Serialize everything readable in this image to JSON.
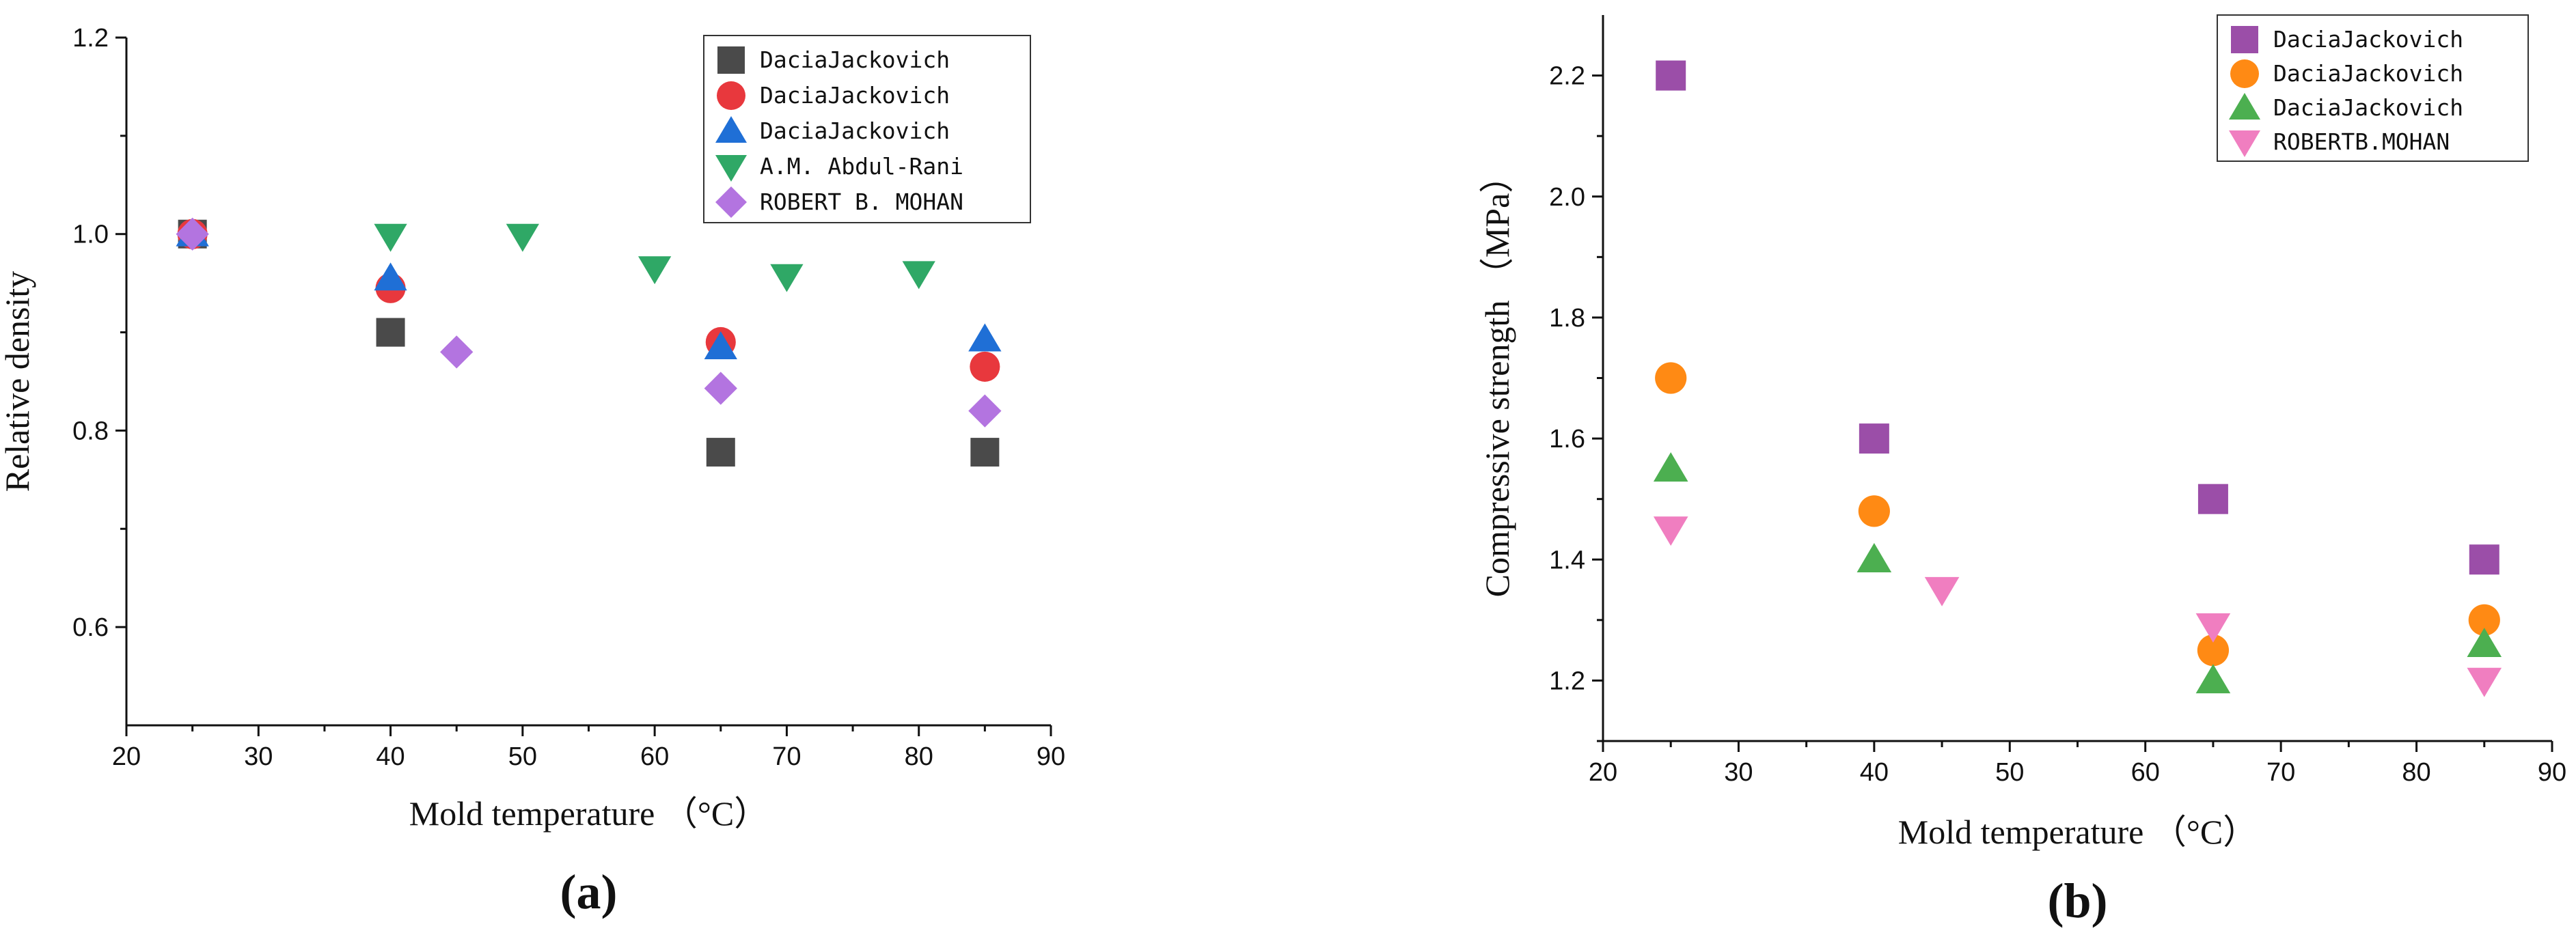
{
  "chart_data": [
    {
      "type": "scatter",
      "panel_label": "(a)",
      "xlabel": "Mold  temperature  （°C）",
      "ylabel": "Relative density",
      "xlim": [
        20,
        90
      ],
      "ylim": [
        0.5,
        1.2
      ],
      "xticks": [
        20,
        30,
        40,
        50,
        60,
        70,
        80,
        90
      ],
      "yticks": [
        0.6,
        0.8,
        1.0,
        1.2
      ],
      "ytick_labels": [
        "0.6",
        "0.8",
        "1.0",
        "1.2"
      ],
      "legend_position": "top-right",
      "series": [
        {
          "name": "DaciaJackovich",
          "marker": "square",
          "color": "#4a4a4a",
          "points": [
            [
              25,
              1.0
            ],
            [
              40,
              0.9
            ],
            [
              65,
              0.778
            ],
            [
              85,
              0.778
            ]
          ]
        },
        {
          "name": "DaciaJackovich",
          "marker": "circle",
          "color": "#e8383d",
          "points": [
            [
              25,
              1.0
            ],
            [
              40,
              0.945
            ],
            [
              65,
              0.89
            ],
            [
              85,
              0.865
            ]
          ]
        },
        {
          "name": "DaciaJackovich",
          "marker": "triangle-up",
          "color": "#1f6fd6",
          "points": [
            [
              25,
              1.0
            ],
            [
              40,
              0.955
            ],
            [
              65,
              0.885
            ],
            [
              85,
              0.893
            ]
          ]
        },
        {
          "name": "A.M. Abdul-Rani",
          "marker": "triangle-down",
          "color": "#2fa866",
          "points": [
            [
              40,
              0.998
            ],
            [
              50,
              0.998
            ],
            [
              60,
              0.965
            ],
            [
              70,
              0.957
            ],
            [
              80,
              0.96
            ]
          ]
        },
        {
          "name": "ROBERT B. MOHAN",
          "marker": "diamond",
          "color": "#b374e0",
          "points": [
            [
              25,
              1.0
            ],
            [
              45,
              0.88
            ],
            [
              65,
              0.843
            ],
            [
              85,
              0.82
            ]
          ]
        }
      ]
    },
    {
      "type": "scatter",
      "panel_label": "(b)",
      "xlabel": "Mold  temperature  （°C）",
      "ylabel": "Compressive  strength  （MPa）",
      "xlim": [
        20,
        90
      ],
      "ylim": [
        1.1,
        2.3
      ],
      "xticks": [
        20,
        30,
        40,
        50,
        60,
        70,
        80,
        90
      ],
      "yticks": [
        1.2,
        1.4,
        1.6,
        1.8,
        2.0,
        2.2
      ],
      "ytick_labels": [
        "1.2",
        "1.4",
        "1.6",
        "1.8",
        "2.0",
        "2.2"
      ],
      "legend_position": "top-right",
      "series": [
        {
          "name": "DaciaJackovich",
          "marker": "square",
          "color": "#9b4ea8",
          "points": [
            [
              25,
              2.2
            ],
            [
              40,
              1.6
            ],
            [
              65,
              1.5
            ],
            [
              85,
              1.4
            ]
          ]
        },
        {
          "name": "DaciaJackovich",
          "marker": "circle",
          "color": "#ff8a14",
          "points": [
            [
              25,
              1.7
            ],
            [
              40,
              1.48
            ],
            [
              65,
              1.25
            ],
            [
              85,
              1.3
            ]
          ]
        },
        {
          "name": "DaciaJackovich",
          "marker": "triangle-up",
          "color": "#4caf50",
          "points": [
            [
              25,
              1.55
            ],
            [
              40,
              1.4
            ],
            [
              65,
              1.2
            ],
            [
              85,
              1.26
            ]
          ]
        },
        {
          "name": "ROBERTB.MOHAN",
          "marker": "triangle-down",
          "color": "#f07ec0",
          "points": [
            [
              25,
              1.45
            ],
            [
              45,
              1.35
            ],
            [
              65,
              1.29
            ],
            [
              85,
              1.2
            ]
          ]
        }
      ]
    }
  ]
}
